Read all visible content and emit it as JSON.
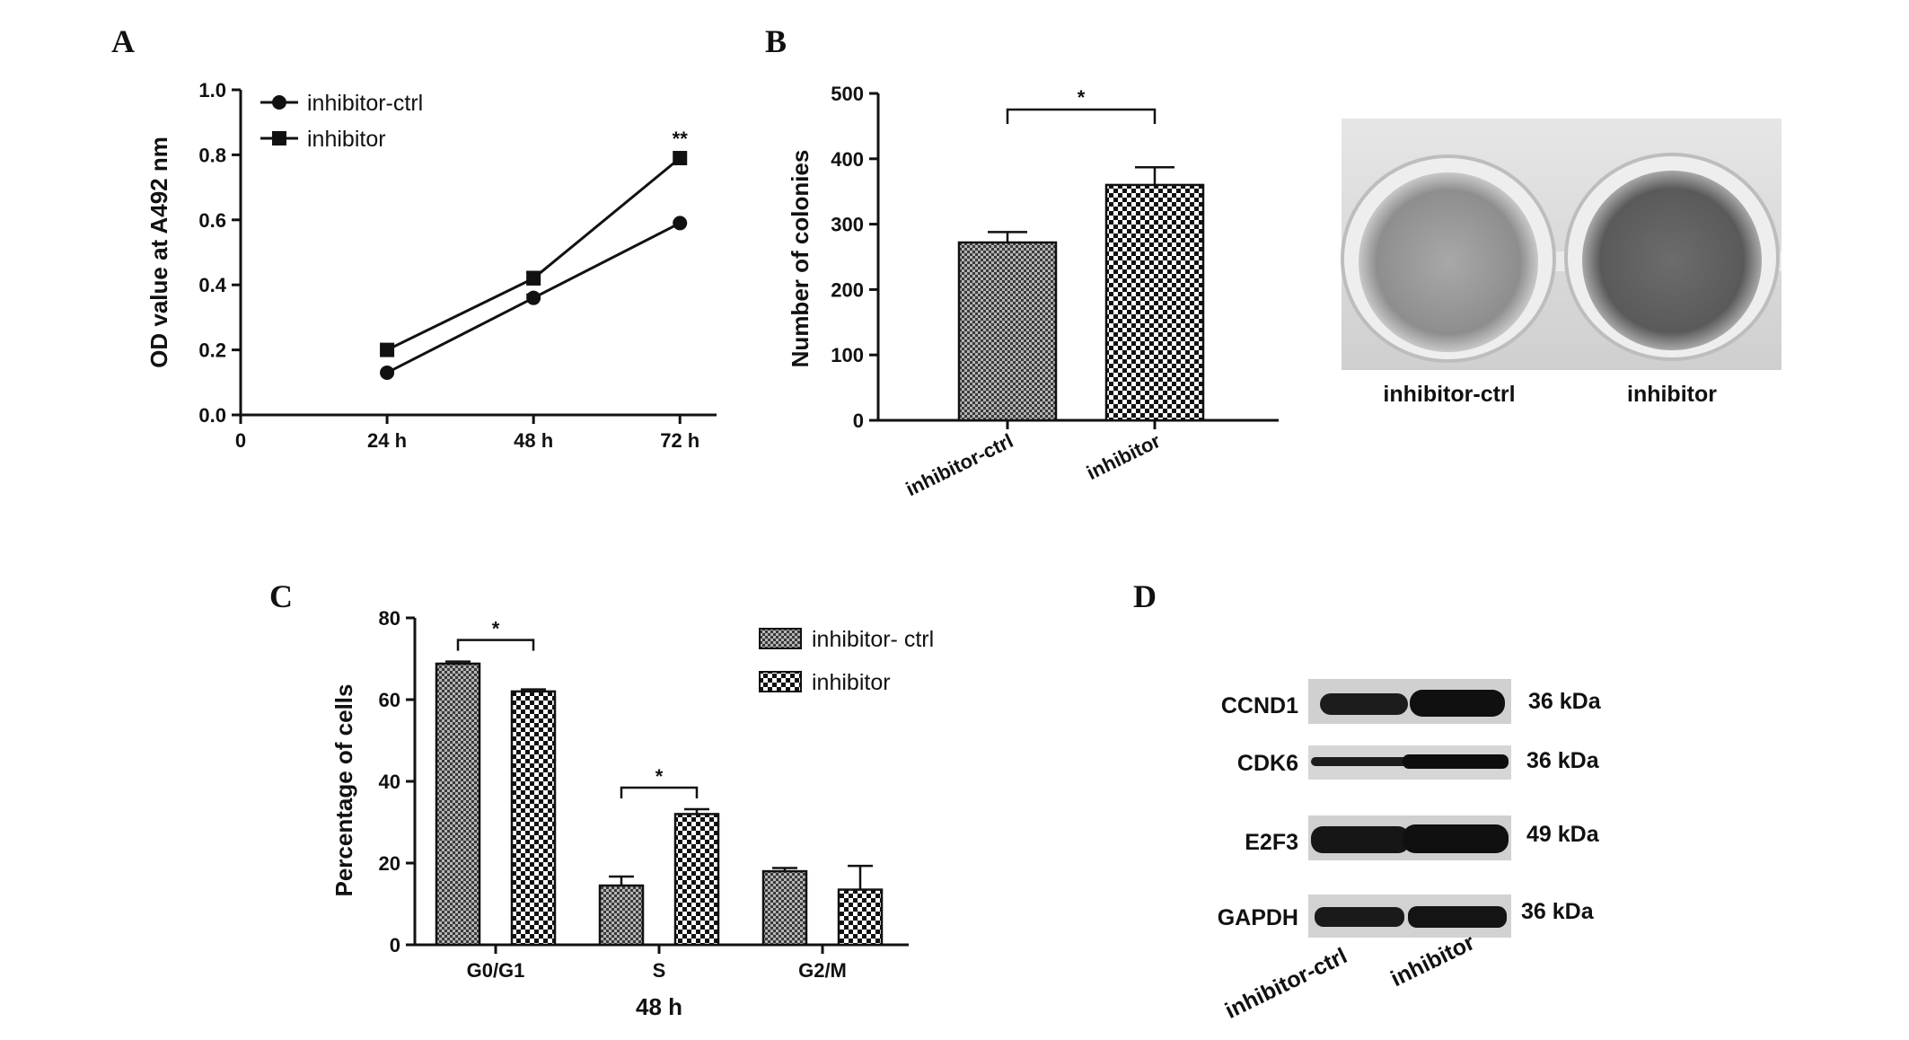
{
  "panels": {
    "A": {
      "letter": "A"
    },
    "B": {
      "letter": "B"
    },
    "C": {
      "letter": "C"
    },
    "D": {
      "letter": "D"
    }
  },
  "chart_data": [
    {
      "panel": "A",
      "type": "line",
      "ylabel": "OD value at A492 nm",
      "xlabel": "",
      "x_ticks": [
        "0",
        "24 h",
        "48 h",
        "72 h"
      ],
      "x": [
        24,
        48,
        72
      ],
      "xlim": [
        0,
        78
      ],
      "ylim": [
        0,
        1.0
      ],
      "y_ticks": [
        "0.0",
        "0.2",
        "0.4",
        "0.6",
        "0.8",
        "1.0"
      ],
      "series": [
        {
          "name": "inhibitor-ctrl",
          "marker": "circle",
          "values": [
            0.13,
            0.36,
            0.59
          ],
          "errors": [
            0.005,
            0.01,
            0.005
          ]
        },
        {
          "name": "inhibitor",
          "marker": "square",
          "values": [
            0.2,
            0.42,
            0.79
          ],
          "errors": [
            0.005,
            0.02,
            0.005
          ]
        }
      ],
      "annotations": [
        {
          "x": 72,
          "text": "**"
        }
      ],
      "legend": "top-left",
      "grid": false
    },
    {
      "panel": "B",
      "type": "bar",
      "ylabel": "Number of colonies",
      "categories": [
        "inhibitor-ctrl",
        "inhibitor"
      ],
      "values": [
        272,
        360
      ],
      "errors": [
        16,
        27
      ],
      "ylim": [
        0,
        500
      ],
      "y_ticks": [
        "0",
        "100",
        "200",
        "300",
        "400",
        "500"
      ],
      "significance": [
        {
          "between": [
            0,
            1
          ],
          "text": "*"
        }
      ],
      "image_labels": [
        "inhibitor-ctrl",
        "inhibitor"
      ],
      "grid": false
    },
    {
      "panel": "C",
      "type": "bar",
      "ylabel": "Percentage of cells",
      "xlabel": "48 h",
      "categories": [
        "G0/G1",
        "S",
        "G2/M"
      ],
      "series": [
        {
          "name": "inhibitor- ctrl",
          "values": [
            68.8,
            14.5,
            18.0
          ],
          "errors": [
            0.5,
            2.2,
            0.8
          ]
        },
        {
          "name": "inhibitor",
          "values": [
            62.0,
            32.0,
            13.5
          ],
          "errors": [
            0.5,
            1.2,
            5.8
          ]
        }
      ],
      "ylim": [
        0,
        80
      ],
      "y_ticks": [
        "0",
        "20",
        "40",
        "60",
        "80"
      ],
      "significance": [
        {
          "category": 0,
          "text": "*"
        },
        {
          "category": 1,
          "text": "*"
        }
      ],
      "legend": "top-right",
      "grid": false
    }
  ],
  "western_blot": {
    "panel": "D",
    "rows": [
      {
        "protein": "CCND1",
        "size": "36 kDa"
      },
      {
        "protein": "CDK6",
        "size": "36 kDa"
      },
      {
        "protein": "E2F3",
        "size": "49 kDa"
      },
      {
        "protein": "GAPDH",
        "size": "36 kDa"
      }
    ],
    "lanes": [
      "inhibitor-ctrl",
      "inhibitor"
    ]
  }
}
